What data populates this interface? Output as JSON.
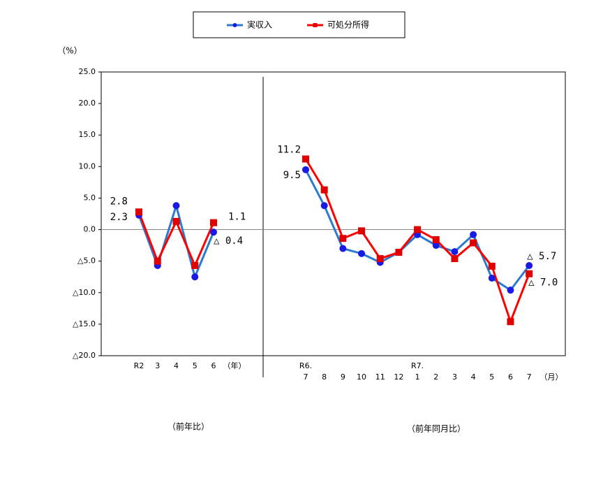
{
  "chart_data": [
    {
      "type": "line",
      "y_label": "（%）",
      "x_label": "（前年比）",
      "x_unit": "（年）",
      "categories": [
        "R2",
        "3",
        "4",
        "5",
        "6"
      ],
      "series": [
        {
          "name": "実収入",
          "color": "#2a7bd0",
          "marker_color": "#1a1ae6",
          "marker": "circle",
          "label_color": "#1a1aa0",
          "values": [
            2.3,
            -5.7,
            3.8,
            -7.5,
            -0.4
          ],
          "value_labels": [
            "2.3",
            null,
            null,
            null,
            "△ 0.4"
          ]
        },
        {
          "name": "可処分所得",
          "color": "#ff0000",
          "marker_color": "#e00000",
          "marker": "square",
          "label_color": "#c00000",
          "values": [
            2.8,
            -5.0,
            1.3,
            -5.7,
            1.1
          ],
          "value_labels": [
            "2.8",
            null,
            null,
            null,
            "1.1"
          ]
        }
      ],
      "ylim": [
        -20,
        25
      ],
      "yticks": [
        {
          "value": 25,
          "label": "25.0"
        },
        {
          "value": 20,
          "label": "20.0"
        },
        {
          "value": 15,
          "label": "15.0"
        },
        {
          "value": 10,
          "label": "10.0"
        },
        {
          "value": 5,
          "label": "5.0"
        },
        {
          "value": 0,
          "label": "0.0"
        },
        {
          "value": -5,
          "label": "△5.0"
        },
        {
          "value": -10,
          "label": "△10.0"
        },
        {
          "value": -15,
          "label": "△15.0"
        },
        {
          "value": -20,
          "label": "△20.0"
        }
      ]
    },
    {
      "type": "line",
      "x_label": "（前年同月比）",
      "x_unit": "（月）",
      "categories": [
        "7",
        "8",
        "9",
        "10",
        "11",
        "12",
        "1",
        "2",
        "3",
        "4",
        "5",
        "6",
        "7"
      ],
      "category_prefix": [
        "R6.",
        null,
        null,
        null,
        null,
        null,
        "R7.",
        null,
        null,
        null,
        null,
        null,
        null
      ],
      "series": [
        {
          "color": "#2a7bd0",
          "marker_color": "#1a1ae6",
          "marker": "circle",
          "label_color": "#1a1aa0",
          "values": [
            9.5,
            3.8,
            -3.0,
            -3.8,
            -5.2,
            -3.6,
            -0.8,
            -2.5,
            -3.5,
            -0.8,
            -7.7,
            -9.6,
            -5.7
          ],
          "value_labels": [
            "9.5",
            null,
            null,
            null,
            null,
            null,
            null,
            null,
            null,
            null,
            null,
            null,
            "△ 5.7"
          ]
        },
        {
          "color": "#ff0000",
          "marker_color": "#e00000",
          "marker": "square",
          "label_color": "#c00000",
          "values": [
            11.2,
            6.3,
            -1.4,
            -0.2,
            -4.6,
            -3.6,
            0.0,
            -1.6,
            -4.6,
            -2.1,
            -5.8,
            -14.6,
            -7.0
          ],
          "value_labels": [
            "11.2",
            null,
            null,
            null,
            null,
            null,
            null,
            null,
            null,
            null,
            null,
            null,
            "△ 7.0"
          ]
        }
      ],
      "ylim": [
        -20,
        25
      ]
    }
  ]
}
